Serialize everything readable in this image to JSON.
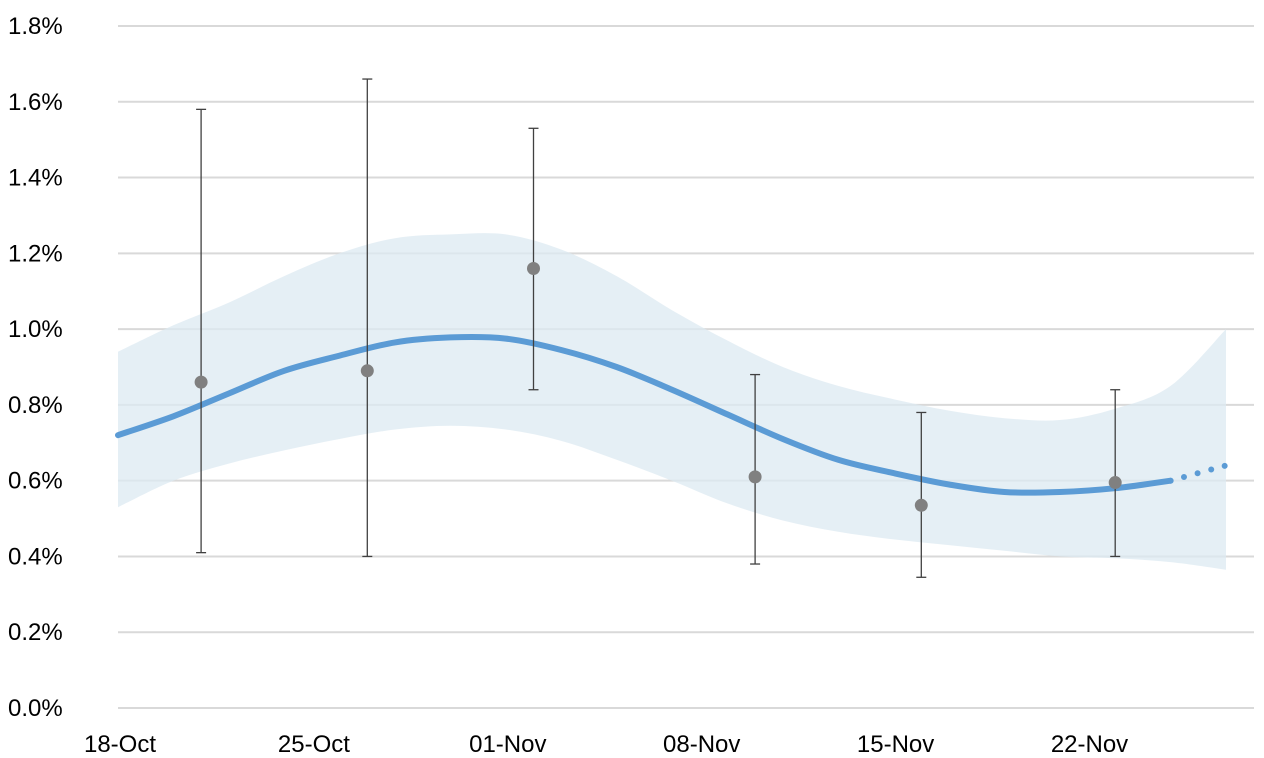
{
  "chart_data": {
    "type": "line",
    "title": "",
    "xlabel": "",
    "ylabel": "",
    "x_ticks": [
      "18-Oct",
      "25-Oct",
      "01-Nov",
      "08-Nov",
      "15-Nov",
      "22-Nov"
    ],
    "x_range": [
      "2020-10-18",
      "2020-11-27"
    ],
    "y_ticks": [
      "0.0%",
      "0.2%",
      "0.4%",
      "0.6%",
      "0.8%",
      "1.0%",
      "1.2%",
      "1.4%",
      "1.6%",
      "1.8%"
    ],
    "ylim": [
      0,
      1.8
    ],
    "grid": "horizontal",
    "legend": "none",
    "colors": {
      "trend": "#5b9bd5",
      "band": "#dce9f2",
      "points": "#808080",
      "error_bars": "#404040",
      "grid": "#d9d9d9"
    },
    "series": [
      {
        "kind": "modelled-trend",
        "style": "solid-then-dotted",
        "points": [
          {
            "x": "2020-10-18",
            "y": 0.72
          },
          {
            "x": "2020-10-20",
            "y": 0.77
          },
          {
            "x": "2020-10-22",
            "y": 0.83
          },
          {
            "x": "2020-10-24",
            "y": 0.89
          },
          {
            "x": "2020-10-26",
            "y": 0.93
          },
          {
            "x": "2020-10-28",
            "y": 0.965
          },
          {
            "x": "2020-10-30",
            "y": 0.978
          },
          {
            "x": "2020-11-01",
            "y": 0.975
          },
          {
            "x": "2020-11-03",
            "y": 0.945
          },
          {
            "x": "2020-11-05",
            "y": 0.9
          },
          {
            "x": "2020-11-07",
            "y": 0.84
          },
          {
            "x": "2020-11-09",
            "y": 0.775
          },
          {
            "x": "2020-11-11",
            "y": 0.71
          },
          {
            "x": "2020-11-13",
            "y": 0.655
          },
          {
            "x": "2020-11-15",
            "y": 0.62
          },
          {
            "x": "2020-11-17",
            "y": 0.59
          },
          {
            "x": "2020-11-19",
            "y": 0.57
          },
          {
            "x": "2020-11-21",
            "y": 0.57
          },
          {
            "x": "2020-11-23",
            "y": 0.58
          },
          {
            "x": "2020-11-25",
            "y": 0.6
          }
        ],
        "projection": [
          {
            "x": "2020-11-25",
            "y": 0.6
          },
          {
            "x": "2020-11-27",
            "y": 0.64
          }
        ]
      },
      {
        "kind": "credible-interval",
        "points": [
          {
            "x": "2020-10-18",
            "lo": 0.53,
            "hi": 0.94
          },
          {
            "x": "2020-10-20",
            "lo": 0.6,
            "hi": 1.01
          },
          {
            "x": "2020-10-22",
            "lo": 0.645,
            "hi": 1.07
          },
          {
            "x": "2020-10-24",
            "lo": 0.68,
            "hi": 1.14
          },
          {
            "x": "2020-10-26",
            "lo": 0.71,
            "hi": 1.2
          },
          {
            "x": "2020-10-28",
            "lo": 0.735,
            "hi": 1.24
          },
          {
            "x": "2020-10-30",
            "lo": 0.745,
            "hi": 1.25
          },
          {
            "x": "2020-11-01",
            "lo": 0.735,
            "hi": 1.25
          },
          {
            "x": "2020-11-03",
            "lo": 0.705,
            "hi": 1.21
          },
          {
            "x": "2020-11-05",
            "lo": 0.655,
            "hi": 1.14
          },
          {
            "x": "2020-11-07",
            "lo": 0.6,
            "hi": 1.05
          },
          {
            "x": "2020-11-09",
            "lo": 0.54,
            "hi": 0.97
          },
          {
            "x": "2020-11-11",
            "lo": 0.495,
            "hi": 0.9
          },
          {
            "x": "2020-11-13",
            "lo": 0.465,
            "hi": 0.85
          },
          {
            "x": "2020-11-15",
            "lo": 0.445,
            "hi": 0.815
          },
          {
            "x": "2020-11-17",
            "lo": 0.43,
            "hi": 0.785
          },
          {
            "x": "2020-11-19",
            "lo": 0.415,
            "hi": 0.765
          },
          {
            "x": "2020-11-21",
            "lo": 0.4,
            "hi": 0.76
          },
          {
            "x": "2020-11-23",
            "lo": 0.395,
            "hi": 0.79
          },
          {
            "x": "2020-11-25",
            "lo": 0.385,
            "hi": 0.85
          },
          {
            "x": "2020-11-27",
            "lo": 0.365,
            "hi": 1.0
          }
        ]
      },
      {
        "kind": "estimates-with-error-bars",
        "points": [
          {
            "x": "2020-10-21",
            "y": 0.86,
            "lo": 0.41,
            "hi": 1.58
          },
          {
            "x": "2020-10-27",
            "y": 0.89,
            "lo": 0.4,
            "hi": 1.66
          },
          {
            "x": "2020-11-02",
            "y": 1.16,
            "lo": 0.84,
            "hi": 1.53
          },
          {
            "x": "2020-11-10",
            "y": 0.61,
            "lo": 0.38,
            "hi": 0.88
          },
          {
            "x": "2020-11-16",
            "y": 0.535,
            "lo": 0.345,
            "hi": 0.78
          },
          {
            "x": "2020-11-23",
            "y": 0.595,
            "lo": 0.4,
            "hi": 0.84
          }
        ]
      }
    ]
  }
}
